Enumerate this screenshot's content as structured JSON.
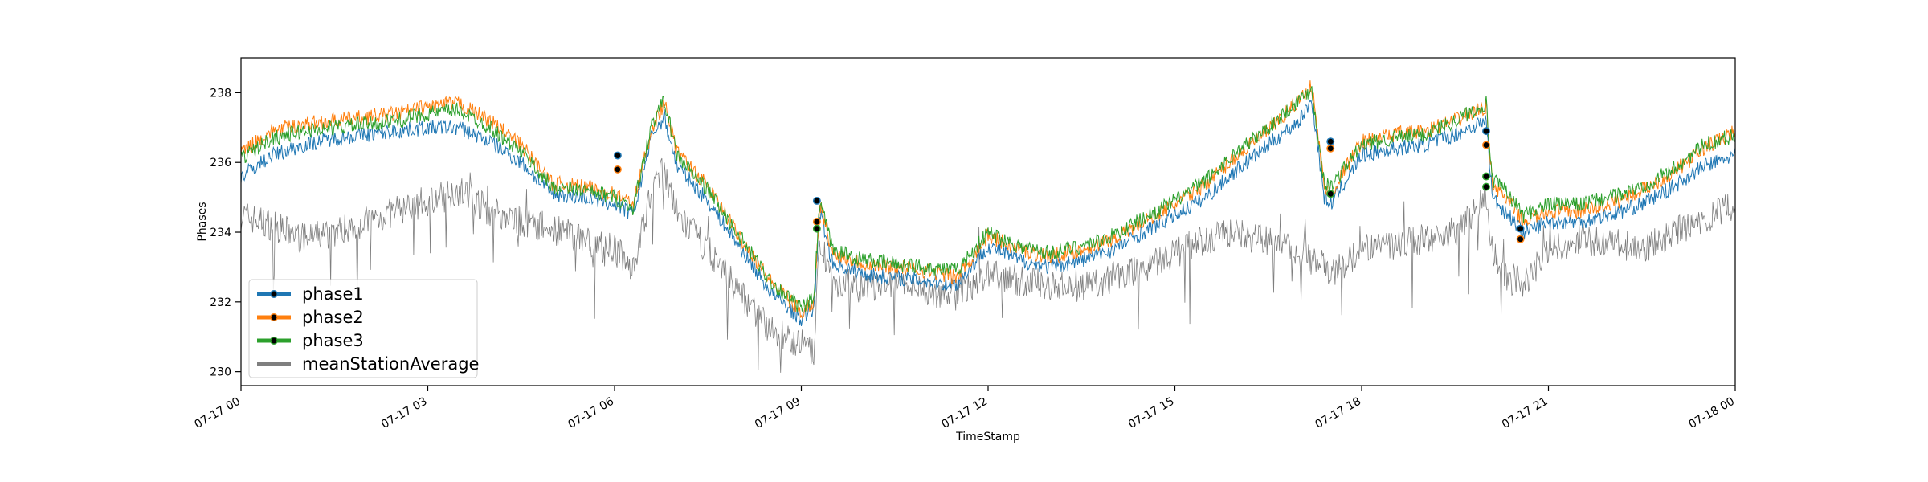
{
  "chart_data": {
    "type": "line",
    "title": "",
    "xlabel": "TimeStamp",
    "ylabel": "Phases",
    "x_tick_labels": [
      "07-17 00",
      "07-17 03",
      "07-17 06",
      "07-17 09",
      "07-17 12",
      "07-17 15",
      "07-17 18",
      "07-17 21",
      "07-18 00"
    ],
    "x_range": [
      "2019-07-17 00:00",
      "2019-07-18 00:00"
    ],
    "ylim": [
      229.6,
      239.0
    ],
    "y_ticks": [
      230,
      232,
      234,
      236,
      238
    ],
    "grid": false,
    "legend_position": "lower-left",
    "x_hours": [
      0,
      0.5,
      1,
      1.5,
      2,
      2.5,
      3,
      3.5,
      4,
      4.5,
      5,
      5.5,
      6,
      6.3,
      6.6,
      6.8,
      7,
      7.5,
      8,
      8.5,
      9,
      9.2,
      9.3,
      9.5,
      10,
      10.5,
      11,
      11.5,
      12,
      12.5,
      13,
      13.5,
      14,
      14.5,
      15,
      15.5,
      16,
      16.5,
      17,
      17.2,
      17.4,
      17.5,
      18,
      18.5,
      19,
      19.5,
      20,
      20.1,
      20.3,
      20.6,
      21,
      21.5,
      22,
      22.5,
      23,
      23.5,
      24
    ],
    "series": [
      {
        "name": "phase1",
        "color": "#1f77b4",
        "markers": true,
        "values": [
          235.6,
          236.2,
          236.5,
          236.7,
          236.8,
          236.9,
          237.0,
          237.0,
          236.6,
          236.0,
          235.1,
          235.0,
          234.8,
          234.5,
          236.8,
          237.3,
          235.9,
          234.9,
          233.6,
          232.3,
          231.5,
          231.8,
          234.6,
          233.1,
          232.8,
          232.7,
          232.6,
          232.5,
          233.6,
          233.2,
          233.0,
          233.2,
          233.5,
          234.0,
          234.5,
          235.0,
          235.8,
          236.5,
          237.2,
          237.8,
          235.0,
          234.8,
          236.2,
          236.4,
          236.5,
          236.8,
          237.2,
          235.0,
          234.6,
          234.0,
          234.3,
          234.3,
          234.5,
          234.8,
          235.3,
          235.9,
          236.2
        ]
      },
      {
        "name": "phase2",
        "color": "#ff7f0e",
        "markers": true,
        "values": [
          236.3,
          236.9,
          237.1,
          237.2,
          237.3,
          237.4,
          237.6,
          237.7,
          237.2,
          236.5,
          235.4,
          235.3,
          235.1,
          234.8,
          237.0,
          237.7,
          236.3,
          235.3,
          233.9,
          232.6,
          231.7,
          232.0,
          234.8,
          233.4,
          233.1,
          233.0,
          232.9,
          232.7,
          233.9,
          233.5,
          233.3,
          233.5,
          233.8,
          234.3,
          234.8,
          235.4,
          236.2,
          236.9,
          237.8,
          238.2,
          235.3,
          235.1,
          236.6,
          236.8,
          236.9,
          237.2,
          237.6,
          235.4,
          235.0,
          234.3,
          234.6,
          234.6,
          234.8,
          235.2,
          235.7,
          236.4,
          236.9
        ]
      },
      {
        "name": "phase3",
        "color": "#2ca02c",
        "markers": true,
        "values": [
          236.1,
          236.7,
          236.9,
          237.0,
          237.1,
          237.2,
          237.4,
          237.5,
          237.0,
          236.3,
          235.3,
          235.2,
          235.0,
          234.7,
          237.1,
          237.8,
          236.2,
          235.2,
          233.9,
          232.6,
          231.8,
          232.1,
          234.9,
          233.5,
          233.2,
          233.1,
          233.0,
          232.9,
          234.0,
          233.6,
          233.4,
          233.6,
          233.9,
          234.4,
          234.9,
          235.5,
          236.3,
          237.0,
          237.8,
          238.1,
          235.4,
          235.3,
          236.5,
          236.7,
          236.8,
          237.2,
          237.7,
          235.5,
          235.2,
          234.5,
          234.8,
          234.8,
          235.0,
          235.3,
          235.8,
          236.5,
          236.8
        ]
      },
      {
        "name": "meanStationAverage",
        "color": "#7f7f7f",
        "markers": false,
        "values": [
          234.5,
          234.2,
          233.8,
          234.0,
          234.3,
          234.6,
          234.9,
          235.2,
          234.6,
          234.3,
          234.1,
          233.8,
          233.5,
          233.0,
          235.2,
          235.8,
          234.5,
          233.5,
          232.3,
          231.2,
          230.8,
          230.5,
          233.8,
          232.6,
          232.4,
          232.5,
          232.3,
          232.2,
          232.8,
          232.6,
          232.5,
          232.4,
          232.7,
          233.0,
          233.4,
          233.8,
          234.0,
          233.7,
          233.4,
          233.2,
          233.0,
          232.8,
          233.5,
          233.6,
          233.8,
          234.0,
          235.0,
          233.4,
          232.8,
          232.5,
          233.5,
          233.8,
          233.7,
          233.5,
          234.0,
          234.3,
          234.8
        ]
      }
    ],
    "jump_markers": [
      {
        "x_hour": 6.05,
        "values": [
          236.2,
          235.8
        ]
      },
      {
        "x_hour": 9.25,
        "values": [
          234.9,
          234.3,
          234.1
        ]
      },
      {
        "x_hour": 17.5,
        "values": [
          236.6,
          236.4,
          235.1
        ]
      },
      {
        "x_hour": 20.0,
        "values": [
          236.9,
          236.5,
          235.6,
          235.3
        ]
      },
      {
        "x_hour": 20.55,
        "values": [
          234.1,
          233.8
        ]
      }
    ]
  }
}
